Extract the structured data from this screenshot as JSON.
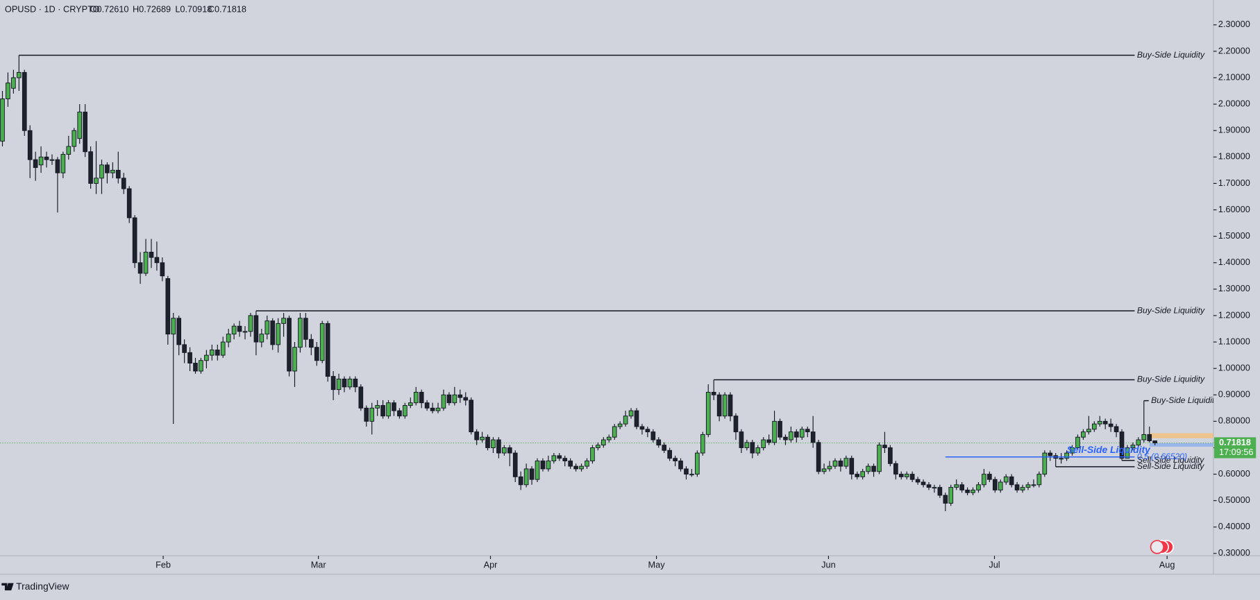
{
  "chart_data": {
    "type": "candlestick",
    "title": "OPUSD · 1D · CRYPTO",
    "ohlc_readout": [
      "O0.72610",
      "H0.72689",
      "L0.70918",
      "C0.71818"
    ],
    "up_color": "#4caf50",
    "down_color": "#1e222d",
    "open": [
      1.86,
      2.02,
      2.06,
      2.1,
      2.12,
      1.9,
      1.79,
      1.77,
      1.8,
      1.79,
      1.79,
      1.74,
      1.81,
      1.84,
      1.87,
      1.97,
      1.82,
      1.7,
      1.72,
      1.77,
      1.74,
      1.75,
      1.72,
      1.68,
      1.57,
      1.4,
      1.36,
      1.44,
      1.42,
      1.4,
      1.34,
      1.13,
      1.19,
      1.09,
      1.06,
      1.02,
      0.99,
      1.03,
      1.05,
      1.07,
      1.05,
      1.1,
      1.13,
      1.16,
      1.14,
      1.14,
      1.2,
      1.1,
      1.13,
      1.18,
      1.09,
      1.17,
      1.19,
      0.99,
      1.08,
      1.19,
      1.11,
      1.08,
      1.03,
      1.17,
      0.97,
      0.92,
      0.96,
      0.93,
      0.96,
      0.93,
      0.85,
      0.8,
      0.85,
      0.86,
      0.82,
      0.87,
      0.84,
      0.82,
      0.86,
      0.87,
      0.91,
      0.87,
      0.85,
      0.84,
      0.85,
      0.9,
      0.87,
      0.9,
      0.89,
      0.88,
      0.76,
      0.73,
      0.74,
      0.7,
      0.73,
      0.68,
      0.7,
      0.68,
      0.59,
      0.56,
      0.62,
      0.58,
      0.65,
      0.62,
      0.65,
      0.67,
      0.66,
      0.65,
      0.63,
      0.62,
      0.63,
      0.65,
      0.7,
      0.71,
      0.73,
      0.74,
      0.78,
      0.79,
      0.82,
      0.84,
      0.78,
      0.77,
      0.76,
      0.73,
      0.71,
      0.69,
      0.66,
      0.65,
      0.62,
      0.6,
      0.6,
      0.68,
      0.75,
      0.91,
      0.9,
      0.82,
      0.9,
      0.82,
      0.76,
      0.7,
      0.72,
      0.68,
      0.7,
      0.73,
      0.72,
      0.8,
      0.74,
      0.73,
      0.76,
      0.74,
      0.77,
      0.76,
      0.72,
      0.61,
      0.62,
      0.63,
      0.65,
      0.63,
      0.66,
      0.6,
      0.59,
      0.61,
      0.63,
      0.61,
      0.71,
      0.7,
      0.64,
      0.6,
      0.59,
      0.6,
      0.58,
      0.57,
      0.56,
      0.55,
      0.55,
      0.52,
      0.49,
      0.55,
      0.56,
      0.54,
      0.53,
      0.54,
      0.56,
      0.6,
      0.58,
      0.54,
      0.57,
      0.59,
      0.56,
      0.54,
      0.55,
      0.56,
      0.56,
      0.6,
      0.68,
      0.67,
      0.66,
      0.66,
      0.68,
      0.7,
      0.74,
      0.76,
      0.77,
      0.79,
      0.8,
      0.79,
      0.78,
      0.76,
      0.66,
      0.7,
      0.71,
      0.73,
      0.75,
      0.7261
    ],
    "high": [
      2.05,
      2.12,
      2.13,
      2.185,
      2.13,
      1.92,
      1.82,
      1.84,
      1.82,
      1.81,
      1.8,
      1.82,
      1.88,
      1.91,
      2.0,
      2.0,
      1.84,
      1.86,
      1.79,
      1.78,
      1.78,
      1.82,
      1.74,
      1.69,
      1.58,
      1.44,
      1.49,
      1.49,
      1.48,
      1.42,
      1.35,
      1.21,
      1.2,
      1.11,
      1.08,
      1.04,
      1.04,
      1.07,
      1.09,
      1.09,
      1.12,
      1.15,
      1.17,
      1.18,
      1.16,
      1.21,
      1.218,
      1.15,
      1.2,
      1.19,
      1.19,
      1.21,
      1.2,
      1.1,
      1.21,
      1.21,
      1.13,
      1.1,
      1.18,
      1.18,
      0.99,
      0.98,
      0.97,
      0.97,
      0.97,
      0.94,
      0.86,
      0.87,
      0.88,
      0.88,
      0.88,
      0.88,
      0.85,
      0.87,
      0.89,
      0.93,
      0.92,
      0.88,
      0.87,
      0.87,
      0.92,
      0.91,
      0.93,
      0.92,
      0.91,
      0.89,
      0.77,
      0.76,
      0.75,
      0.74,
      0.74,
      0.71,
      0.71,
      0.69,
      0.61,
      0.64,
      0.63,
      0.66,
      0.66,
      0.67,
      0.68,
      0.68,
      0.67,
      0.66,
      0.64,
      0.64,
      0.66,
      0.71,
      0.72,
      0.74,
      0.75,
      0.79,
      0.8,
      0.84,
      0.85,
      0.85,
      0.79,
      0.78,
      0.77,
      0.74,
      0.72,
      0.7,
      0.67,
      0.66,
      0.63,
      0.62,
      0.69,
      0.76,
      0.94,
      0.957,
      0.91,
      0.91,
      0.91,
      0.83,
      0.77,
      0.73,
      0.73,
      0.71,
      0.74,
      0.75,
      0.84,
      0.81,
      0.75,
      0.78,
      0.77,
      0.78,
      0.78,
      0.82,
      0.73,
      0.64,
      0.65,
      0.66,
      0.66,
      0.67,
      0.67,
      0.61,
      0.62,
      0.64,
      0.64,
      0.72,
      0.76,
      0.71,
      0.65,
      0.61,
      0.61,
      0.61,
      0.59,
      0.58,
      0.57,
      0.56,
      0.56,
      0.53,
      0.56,
      0.58,
      0.57,
      0.55,
      0.55,
      0.57,
      0.62,
      0.61,
      0.59,
      0.58,
      0.6,
      0.6,
      0.57,
      0.56,
      0.57,
      0.58,
      0.61,
      0.69,
      0.69,
      0.68,
      0.68,
      0.69,
      0.71,
      0.75,
      0.77,
      0.82,
      0.8,
      0.82,
      0.81,
      0.81,
      0.79,
      0.77,
      0.71,
      0.72,
      0.74,
      0.878,
      0.78,
      0.72689
    ],
    "low": [
      1.84,
      1.99,
      2.04,
      2.05,
      1.88,
      1.72,
      1.71,
      1.74,
      1.76,
      1.77,
      1.59,
      1.72,
      1.79,
      1.82,
      1.85,
      1.8,
      1.68,
      1.66,
      1.66,
      1.7,
      1.72,
      1.7,
      1.66,
      1.55,
      1.38,
      1.32,
      1.35,
      1.38,
      1.37,
      1.33,
      1.09,
      0.79,
      1.05,
      1.02,
      0.99,
      0.98,
      0.98,
      1.0,
      1.03,
      1.03,
      1.04,
      1.08,
      1.11,
      1.12,
      1.11,
      1.12,
      1.05,
      1.08,
      1.11,
      1.07,
      1.06,
      1.12,
      0.97,
      0.93,
      1.06,
      1.08,
      1.05,
      1.01,
      1.02,
      0.95,
      0.88,
      0.9,
      0.91,
      0.92,
      0.91,
      0.84,
      0.78,
      0.75,
      0.82,
      0.81,
      0.81,
      0.82,
      0.81,
      0.81,
      0.85,
      0.86,
      0.85,
      0.84,
      0.83,
      0.83,
      0.84,
      0.86,
      0.86,
      0.87,
      0.86,
      0.75,
      0.71,
      0.72,
      0.69,
      0.68,
      0.66,
      0.67,
      0.63,
      0.57,
      0.54,
      0.55,
      0.56,
      0.57,
      0.61,
      0.61,
      0.64,
      0.65,
      0.63,
      0.62,
      0.61,
      0.61,
      0.62,
      0.64,
      0.69,
      0.7,
      0.72,
      0.73,
      0.77,
      0.78,
      0.81,
      0.77,
      0.75,
      0.74,
      0.72,
      0.7,
      0.68,
      0.65,
      0.63,
      0.61,
      0.58,
      0.59,
      0.59,
      0.67,
      0.74,
      0.88,
      0.8,
      0.81,
      0.8,
      0.73,
      0.68,
      0.69,
      0.66,
      0.67,
      0.69,
      0.71,
      0.71,
      0.73,
      0.71,
      0.72,
      0.72,
      0.73,
      0.74,
      0.7,
      0.6,
      0.6,
      0.61,
      0.62,
      0.61,
      0.62,
      0.58,
      0.58,
      0.58,
      0.6,
      0.59,
      0.6,
      0.68,
      0.63,
      0.58,
      0.58,
      0.58,
      0.57,
      0.56,
      0.55,
      0.54,
      0.53,
      0.51,
      0.46,
      0.48,
      0.54,
      0.53,
      0.52,
      0.52,
      0.53,
      0.55,
      0.57,
      0.53,
      0.53,
      0.56,
      0.55,
      0.53,
      0.53,
      0.54,
      0.55,
      0.55,
      0.59,
      0.65,
      0.628,
      0.64,
      0.65,
      0.67,
      0.69,
      0.73,
      0.75,
      0.76,
      0.78,
      0.77,
      0.76,
      0.74,
      0.652,
      0.66,
      0.69,
      0.7,
      0.72,
      0.72,
      0.70918
    ],
    "close": [
      2.02,
      2.08,
      2.1,
      2.12,
      1.9,
      1.79,
      1.76,
      1.8,
      1.79,
      1.79,
      1.74,
      1.81,
      1.84,
      1.9,
      1.97,
      1.82,
      1.7,
      1.72,
      1.77,
      1.74,
      1.75,
      1.72,
      1.68,
      1.57,
      1.4,
      1.36,
      1.44,
      1.42,
      1.4,
      1.35,
      1.13,
      1.19,
      1.09,
      1.06,
      1.02,
      0.99,
      1.03,
      1.05,
      1.07,
      1.05,
      1.1,
      1.13,
      1.16,
      1.14,
      1.14,
      1.2,
      1.1,
      1.13,
      1.18,
      1.09,
      1.17,
      1.19,
      0.99,
      1.08,
      1.19,
      1.11,
      1.08,
      1.03,
      1.17,
      0.97,
      0.92,
      0.96,
      0.93,
      0.96,
      0.93,
      0.85,
      0.8,
      0.85,
      0.86,
      0.82,
      0.87,
      0.84,
      0.82,
      0.86,
      0.87,
      0.91,
      0.87,
      0.85,
      0.84,
      0.85,
      0.9,
      0.87,
      0.9,
      0.89,
      0.88,
      0.76,
      0.73,
      0.74,
      0.7,
      0.73,
      0.68,
      0.7,
      0.68,
      0.59,
      0.56,
      0.62,
      0.58,
      0.65,
      0.62,
      0.65,
      0.67,
      0.66,
      0.65,
      0.63,
      0.62,
      0.63,
      0.65,
      0.7,
      0.71,
      0.73,
      0.74,
      0.78,
      0.79,
      0.82,
      0.84,
      0.78,
      0.77,
      0.76,
      0.73,
      0.71,
      0.69,
      0.66,
      0.65,
      0.62,
      0.6,
      0.6,
      0.68,
      0.75,
      0.91,
      0.9,
      0.82,
      0.9,
      0.82,
      0.76,
      0.7,
      0.72,
      0.68,
      0.7,
      0.73,
      0.72,
      0.8,
      0.74,
      0.73,
      0.76,
      0.74,
      0.77,
      0.76,
      0.72,
      0.61,
      0.62,
      0.63,
      0.65,
      0.63,
      0.66,
      0.6,
      0.59,
      0.61,
      0.63,
      0.61,
      0.71,
      0.7,
      0.64,
      0.6,
      0.59,
      0.6,
      0.58,
      0.57,
      0.56,
      0.55,
      0.55,
      0.52,
      0.49,
      0.55,
      0.56,
      0.54,
      0.53,
      0.54,
      0.56,
      0.6,
      0.58,
      0.54,
      0.57,
      0.59,
      0.56,
      0.54,
      0.55,
      0.56,
      0.56,
      0.6,
      0.68,
      0.67,
      0.66,
      0.66,
      0.68,
      0.7,
      0.74,
      0.76,
      0.77,
      0.79,
      0.8,
      0.79,
      0.78,
      0.76,
      0.66,
      0.7,
      0.71,
      0.73,
      0.75,
      0.7261,
      0.71818
    ],
    "xlim": [
      -0.44,
      219.6
    ],
    "xticks": [
      {
        "value": 29.15,
        "label": "Feb"
      },
      {
        "value": 57.3,
        "label": "Mar"
      },
      {
        "value": 88.5,
        "label": "Apr"
      },
      {
        "value": 118.6,
        "label": "May"
      },
      {
        "value": 149.8,
        "label": "Jun"
      },
      {
        "value": 179.9,
        "label": "Jul"
      },
      {
        "value": 211.2,
        "label": "Aug"
      }
    ],
    "ylim": [
      0.291,
      2.394
    ],
    "yticks": [
      {
        "value": 0.3,
        "label": "0.30000"
      },
      {
        "value": 0.4,
        "label": "0.40000"
      },
      {
        "value": 0.5,
        "label": "0.50000"
      },
      {
        "value": 0.6,
        "label": "0.60000"
      },
      {
        "value": 0.7,
        "label": "0.70000"
      },
      {
        "value": 0.8,
        "label": "0.80000"
      },
      {
        "value": 0.9,
        "label": "0.90000"
      },
      {
        "value": 1.0,
        "label": "1.00000"
      },
      {
        "value": 1.1,
        "label": "1.10000"
      },
      {
        "value": 1.2,
        "label": "1.20000"
      },
      {
        "value": 1.3,
        "label": "1.30000"
      },
      {
        "value": 1.4,
        "label": "1.40000"
      },
      {
        "value": 1.5,
        "label": "1.50000"
      },
      {
        "value": 1.6,
        "label": "1.60000"
      },
      {
        "value": 1.7,
        "label": "1.70000"
      },
      {
        "value": 1.8,
        "label": "1.80000"
      },
      {
        "value": 1.9,
        "label": "1.90000"
      },
      {
        "value": 2.0,
        "label": "2.00000"
      },
      {
        "value": 2.1,
        "label": "2.10000"
      },
      {
        "value": 2.2,
        "label": "2.20000"
      },
      {
        "value": 2.3,
        "label": "2.30000"
      }
    ],
    "levels": [
      {
        "label": "Buy-Side Liquidity",
        "value": 2.185,
        "start": 3,
        "color": "#131722"
      },
      {
        "label": "Buy-Side Liquidity",
        "value": 1.218,
        "start": 46,
        "color": "#131722"
      },
      {
        "label": "Buy-Side Liquidity",
        "value": 0.957,
        "start": 129,
        "color": "#131722"
      },
      {
        "label": "Buy-Side Liquidity",
        "value": 0.878,
        "start": 207,
        "color": "#131722"
      },
      {
        "label": "Sell-Side Liquidity",
        "value": 0.652,
        "start": 203,
        "color": "#131722"
      },
      {
        "label": "Sell-Side Liquidity",
        "value": 0.628,
        "start": 191,
        "color": "#131722"
      },
      {
        "label": "0.5 (0.66520)",
        "value": 0.6652,
        "start": 171,
        "color": "#2962ff"
      }
    ],
    "highlight_label": {
      "label": "Sell-Side Liquidity",
      "value": 0.69,
      "start": 193,
      "color": "#2962ff"
    },
    "zones": [
      {
        "from": 0.736,
        "to": 0.755,
        "start": 208,
        "color": "#f2c17f"
      },
      {
        "from": 0.704,
        "to": 0.717,
        "start": 208,
        "color": "#8fb0ee"
      }
    ],
    "last_price": 0.71818,
    "last_price_color": "#4caf50",
    "countdown": "17:09:56",
    "footer": "TradingView"
  }
}
